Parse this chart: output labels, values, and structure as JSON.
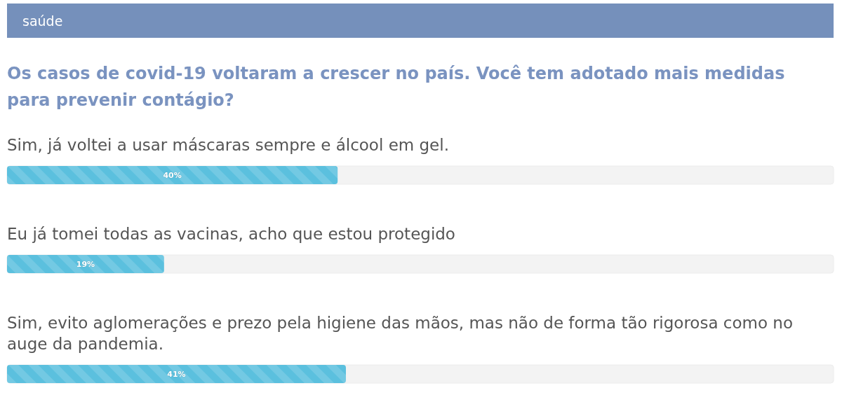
{
  "chart_data": {
    "type": "bar",
    "orientation": "horizontal",
    "annotations": [
      "saúde"
    ],
    "title": "Os casos de covid-19 voltaram a crescer no país. Você tem adotado mais medidas para prevenir contágio?",
    "categories": [
      "Sim, já voltei a usar máscaras sempre e álcool em gel.",
      "Eu já tomei todas as vacinas, acho que estou protegido",
      "Sim, evito aglomerações e prezo pela higiene das mãos, mas não de forma tão rigorosa como no auge da pandemia."
    ],
    "values": [
      40,
      19,
      41
    ],
    "value_labels": [
      "40%",
      "19%",
      "41%"
    ],
    "color": "#5bc0de",
    "xlim": [
      0,
      100
    ],
    "tick_labels": "y"
  }
}
